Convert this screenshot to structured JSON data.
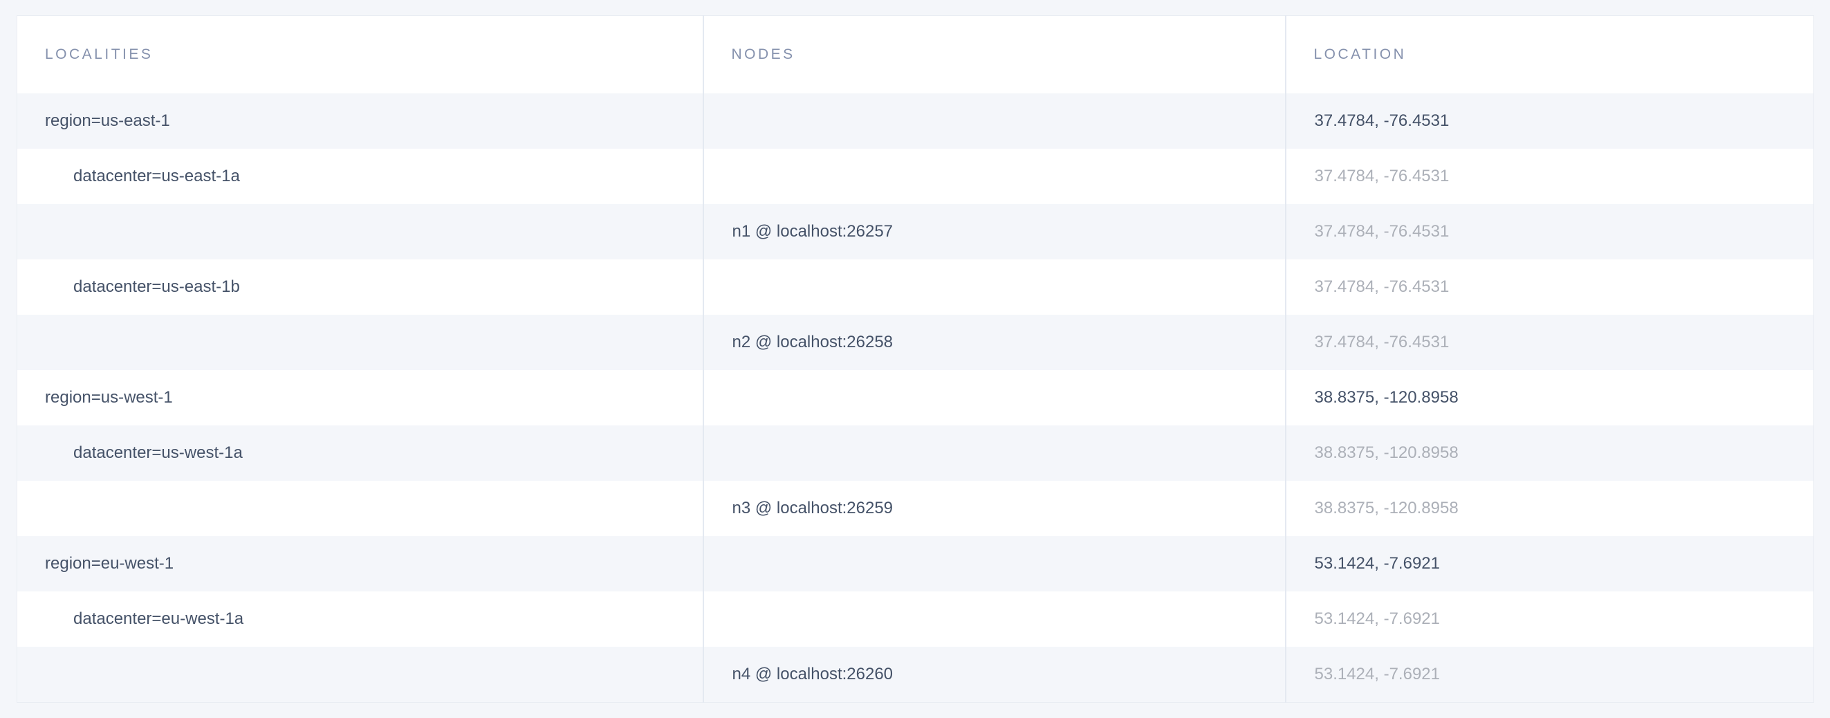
{
  "table": {
    "columns": [
      {
        "label": "LOCALITIES"
      },
      {
        "label": "NODES"
      },
      {
        "label": "LOCATION"
      }
    ],
    "rows": [
      {
        "kind": "region",
        "locality": "region=us-east-1",
        "node": "",
        "location": "37.4784, -76.4531"
      },
      {
        "kind": "datacenter",
        "locality": "datacenter=us-east-1a",
        "node": "",
        "location": "37.4784, -76.4531"
      },
      {
        "kind": "node",
        "locality": "",
        "node": "n1 @ localhost:26257",
        "location": "37.4784, -76.4531"
      },
      {
        "kind": "datacenter",
        "locality": "datacenter=us-east-1b",
        "node": "",
        "location": "37.4784, -76.4531"
      },
      {
        "kind": "node",
        "locality": "",
        "node": "n2 @ localhost:26258",
        "location": "37.4784, -76.4531"
      },
      {
        "kind": "region",
        "locality": "region=us-west-1",
        "node": "",
        "location": "38.8375, -120.8958"
      },
      {
        "kind": "datacenter",
        "locality": "datacenter=us-west-1a",
        "node": "",
        "location": "38.8375, -120.8958"
      },
      {
        "kind": "node",
        "locality": "",
        "node": "n3 @ localhost:26259",
        "location": "38.8375, -120.8958"
      },
      {
        "kind": "region",
        "locality": "region=eu-west-1",
        "node": "",
        "location": "53.1424, -7.6921"
      },
      {
        "kind": "datacenter",
        "locality": "datacenter=eu-west-1a",
        "node": "",
        "location": "53.1424, -7.6921"
      },
      {
        "kind": "node",
        "locality": "",
        "node": "n4 @ localhost:26260",
        "location": "53.1424, -7.6921"
      }
    ],
    "colors": {
      "page_background": "#f4f6fa",
      "row_stripe": "#f4f6fa",
      "row_white": "#ffffff",
      "header_text": "#8591ad",
      "cell_text_dark": "#455268",
      "cell_text_light": "#acb0b8",
      "divider": "#e4e9f1",
      "outer_border": "#e9edf3"
    }
  }
}
